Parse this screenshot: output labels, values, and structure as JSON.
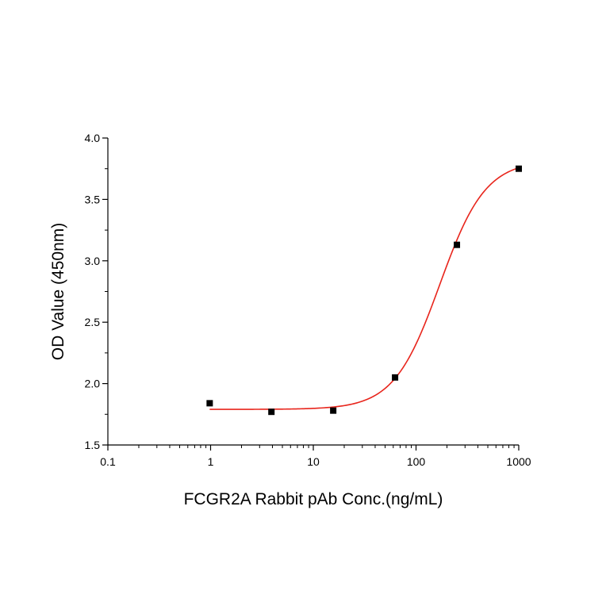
{
  "chart_data": {
    "type": "scatter",
    "title": "",
    "xlabel": "FCGR2A Rabbit pAb  Conc.(ng/mL)",
    "ylabel": "OD Value (450nm)",
    "x_scale": "log",
    "xlim": [
      0.1,
      1000
    ],
    "ylim": [
      1.5,
      4.0
    ],
    "x_ticks": [
      "0.1",
      "1",
      "10",
      "100",
      "1000"
    ],
    "y_ticks": [
      "1.5",
      "2.0",
      "2.5",
      "3.0",
      "3.5",
      "4.0"
    ],
    "grid": false,
    "legend": "none",
    "series": [
      {
        "x": [
          0.98,
          3.91,
          15.63,
          62.5,
          250,
          1000
        ],
        "y": [
          1.84,
          1.77,
          1.78,
          2.05,
          3.13,
          3.75
        ],
        "marker": "square",
        "color": "#000000"
      }
    ],
    "fit_curve": {
      "model": "4PL",
      "bottom": 1.79,
      "top": 3.82,
      "ec50": 170,
      "hill": 1.95,
      "color": "#e8251c"
    }
  }
}
